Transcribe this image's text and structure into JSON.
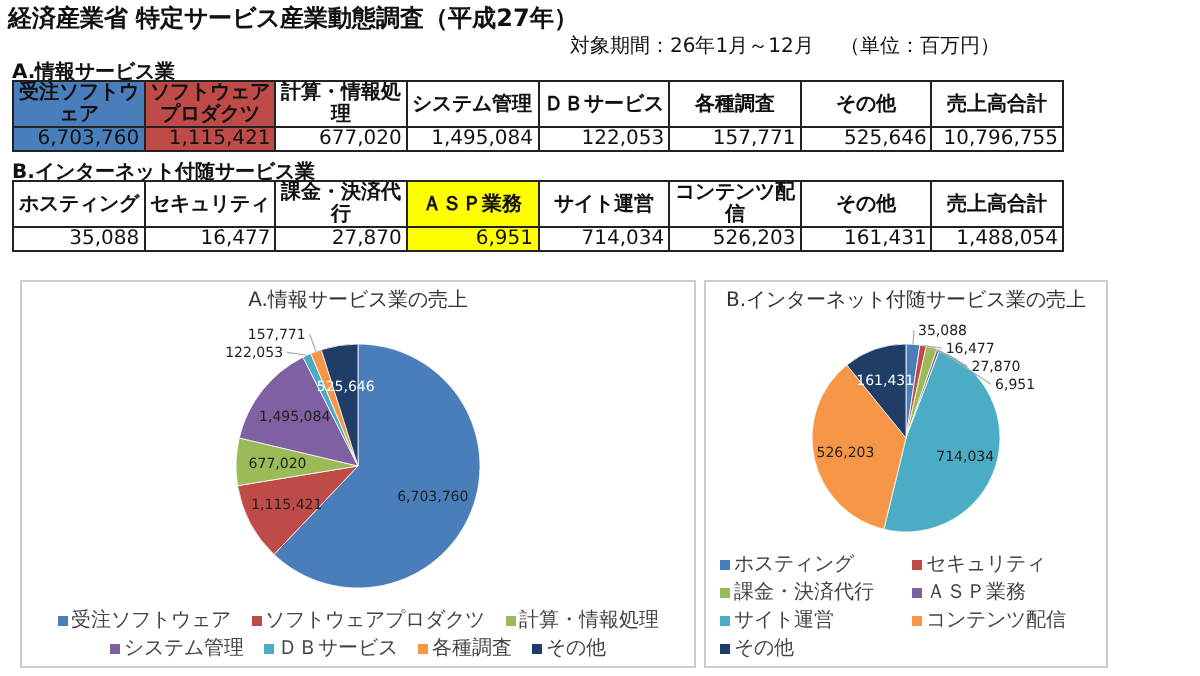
{
  "chart_data": [
    {
      "type": "pie",
      "title": "A.情報サービス業の売上",
      "subtitle": "A.情報サービス業",
      "categories": [
        "受注ソフトウェア",
        "ソフトウェアプロダクツ",
        "計算・情報処理",
        "システム管理",
        "ＤＢサービス",
        "各種調査",
        "その他"
      ],
      "values": [
        6703760,
        1115421,
        677020,
        1495084,
        122053,
        157771,
        525646
      ],
      "value_labels": [
        "6,703,760",
        "1,115,421",
        "677,020",
        "1,495,084",
        "122,053",
        "157,771",
        "525,646"
      ],
      "colors": [
        "#4a7ebb",
        "#be4b48",
        "#9bbb59",
        "#7f60a0",
        "#4bacc6",
        "#f79646",
        "#1f3d66"
      ],
      "legend": "bottom",
      "annotations": [
        "経済産業省 特定サービス産業動態調査（平成27年）",
        "対象期間：26年1月～12月",
        "（単位：百万円）",
        "売上高合計",
        "10,796,755"
      ]
    },
    {
      "type": "pie",
      "title": "B.インターネット付随サービス業の売上",
      "categories": [
        "ホスティング",
        "セキュリティ",
        "課金・決済代行",
        "ＡＳＰ業務",
        "サイト運営",
        "コンテンツ配信",
        "その他"
      ],
      "values": [
        35088,
        16477,
        27870,
        6951,
        714034,
        526203,
        161431
      ],
      "value_labels": [
        "35,088",
        "16,477",
        "27,870",
        "6,951",
        "714,034",
        "526,203",
        "161,431"
      ],
      "colors": [
        "#4a7ebb",
        "#be4b48",
        "#9bbb59",
        "#7f60a0",
        "#4bacc6",
        "#f79646",
        "#1f3d66"
      ],
      "legend": "bottom",
      "annotations": [
        "B.インターネット付随サービス業",
        "売上高合計",
        "1,488,054"
      ]
    }
  ]
}
